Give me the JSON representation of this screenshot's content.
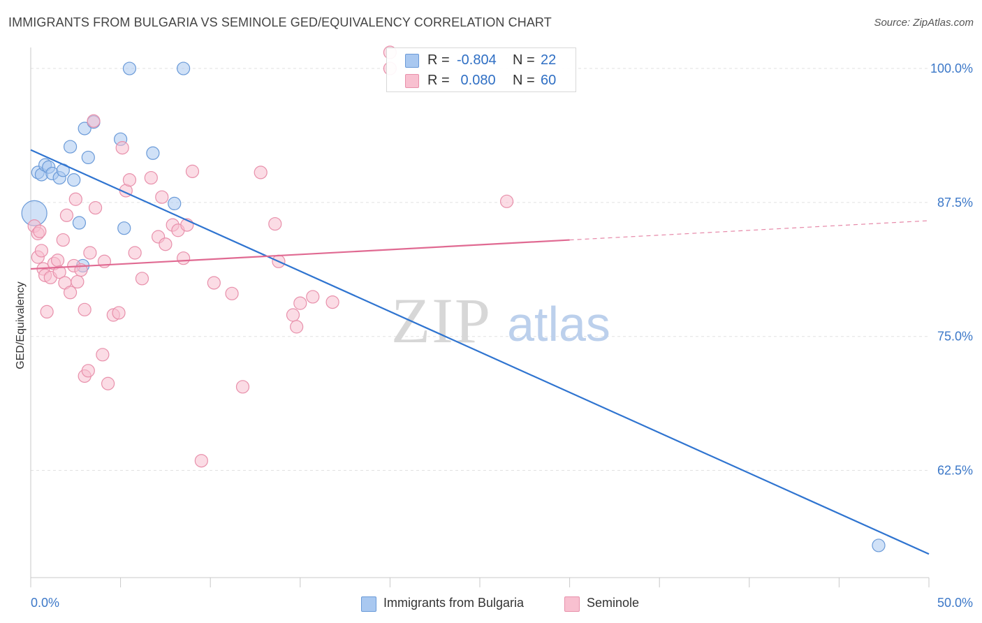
{
  "header": {
    "title": "IMMIGRANTS FROM BULGARIA VS SEMINOLE GED/EQUIVALENCY CORRELATION CHART",
    "source": "Source: ZipAtlas.com"
  },
  "watermark": {
    "zip": "ZIP",
    "atlas": "atlas"
  },
  "stats": [
    {
      "r_label": "R = ",
      "r_value": "-0.804",
      "n_label": "N = ",
      "n_value": "22",
      "color": "#a9c8f0",
      "border": "#6a9ad8"
    },
    {
      "r_label": "R = ",
      "r_value": " 0.080",
      "n_label": "N = ",
      "n_value": "60",
      "color": "#f8c0d0",
      "border": "#e890ab"
    }
  ],
  "chart_data": {
    "type": "scatter",
    "title": "IMMIGRANTS FROM BULGARIA VS SEMINOLE GED/EQUIVALENCY CORRELATION CHART",
    "xlabel": "",
    "ylabel": "GED/Equivalency",
    "xlim": [
      0,
      50
    ],
    "ylim": [
      52.5,
      103
    ],
    "x_tick_labels": [
      {
        "value": 0,
        "label": "0.0%"
      },
      {
        "value": 50,
        "label": "50.0%"
      }
    ],
    "y_tick_labels": [
      {
        "value": 100,
        "label": "100.0%"
      },
      {
        "value": 87.5,
        "label": "87.5%"
      },
      {
        "value": 75,
        "label": "75.0%"
      },
      {
        "value": 62.5,
        "label": "62.5%"
      }
    ],
    "grid": "dashed horizontal",
    "legend_position": "bottom-center",
    "series": [
      {
        "name": "Immigrants from Bulgaria",
        "color": "#6a9ad8",
        "fill": "#a9c8f0",
        "line_color": "#2f74d0",
        "trend": {
          "x0": 0,
          "y0": 92.4,
          "x1": 50,
          "y1": 54.7,
          "solid_to": 50
        },
        "points": [
          [
            0.2,
            86.5,
            18
          ],
          [
            0.4,
            90.3,
            9
          ],
          [
            0.6,
            90.1,
            9
          ],
          [
            0.8,
            91.0,
            9
          ],
          [
            1.0,
            90.8,
            9
          ],
          [
            1.2,
            90.2,
            9
          ],
          [
            1.6,
            89.8,
            9
          ],
          [
            1.8,
            90.5,
            9
          ],
          [
            2.2,
            92.7,
            9
          ],
          [
            2.4,
            89.6,
            9
          ],
          [
            2.7,
            85.6,
            9
          ],
          [
            2.9,
            81.6,
            9
          ],
          [
            3.0,
            94.4,
            9
          ],
          [
            3.2,
            91.7,
            9
          ],
          [
            3.5,
            95.0,
            9
          ],
          [
            5.0,
            93.4,
            9
          ],
          [
            5.2,
            85.1,
            9
          ],
          [
            5.5,
            100.0,
            9
          ],
          [
            6.8,
            92.1,
            9
          ],
          [
            8.0,
            87.4,
            9
          ],
          [
            8.5,
            100.0,
            9
          ],
          [
            47.2,
            55.5,
            9
          ]
        ]
      },
      {
        "name": "Seminole",
        "color": "#e890ab",
        "fill": "#f8c0d0",
        "line_color": "#e06a92",
        "trend": {
          "x0": 0,
          "y0": 81.3,
          "x1": 50,
          "y1": 85.8,
          "solid_to": 30
        },
        "points": [
          [
            0.2,
            85.3,
            9
          ],
          [
            0.4,
            84.6,
            9
          ],
          [
            0.4,
            82.4,
            9
          ],
          [
            0.5,
            84.8,
            9
          ],
          [
            0.6,
            83.0,
            9
          ],
          [
            0.7,
            81.3,
            9
          ],
          [
            0.8,
            80.7,
            9
          ],
          [
            0.9,
            77.3,
            9
          ],
          [
            1.1,
            80.5,
            9
          ],
          [
            1.3,
            81.8,
            9
          ],
          [
            1.5,
            82.1,
            9
          ],
          [
            1.6,
            81.0,
            9
          ],
          [
            1.8,
            84.0,
            9
          ],
          [
            1.9,
            80.0,
            9
          ],
          [
            2.0,
            86.3,
            9
          ],
          [
            2.2,
            79.1,
            9
          ],
          [
            2.4,
            81.6,
            9
          ],
          [
            2.5,
            87.8,
            9
          ],
          [
            2.6,
            80.1,
            9
          ],
          [
            2.8,
            81.2,
            9
          ],
          [
            3.0,
            77.5,
            9
          ],
          [
            3.0,
            71.3,
            9
          ],
          [
            3.2,
            71.8,
            9
          ],
          [
            3.3,
            82.8,
            9
          ],
          [
            3.5,
            95.1,
            9
          ],
          [
            3.6,
            87.0,
            9
          ],
          [
            4.0,
            73.3,
            9
          ],
          [
            4.1,
            82.0,
            9
          ],
          [
            4.3,
            70.6,
            9
          ],
          [
            4.6,
            77.0,
            9
          ],
          [
            4.9,
            77.2,
            9
          ],
          [
            5.1,
            92.6,
            9
          ],
          [
            5.3,
            88.6,
            9
          ],
          [
            5.5,
            89.6,
            9
          ],
          [
            5.8,
            82.8,
            9
          ],
          [
            6.2,
            80.4,
            9
          ],
          [
            6.7,
            89.8,
            9
          ],
          [
            7.1,
            84.3,
            9
          ],
          [
            7.3,
            88.0,
            9
          ],
          [
            7.5,
            83.6,
            9
          ],
          [
            7.9,
            85.4,
            9
          ],
          [
            8.2,
            84.9,
            9
          ],
          [
            8.5,
            82.3,
            9
          ],
          [
            8.7,
            85.4,
            9
          ],
          [
            9.0,
            90.4,
            9
          ],
          [
            9.5,
            63.4,
            9
          ],
          [
            10.2,
            80.0,
            9
          ],
          [
            11.2,
            79.0,
            9
          ],
          [
            11.8,
            70.3,
            9
          ],
          [
            12.8,
            90.3,
            9
          ],
          [
            13.6,
            85.5,
            9
          ],
          [
            13.8,
            82.0,
            9
          ],
          [
            14.6,
            77.0,
            9
          ],
          [
            14.8,
            75.9,
            9
          ],
          [
            15.0,
            78.1,
            9
          ],
          [
            15.7,
            78.7,
            9
          ],
          [
            16.8,
            78.2,
            9
          ],
          [
            20.0,
            101.5,
            9
          ],
          [
            26.5,
            87.6,
            9
          ],
          [
            20.0,
            100.0,
            9
          ]
        ]
      }
    ]
  }
}
